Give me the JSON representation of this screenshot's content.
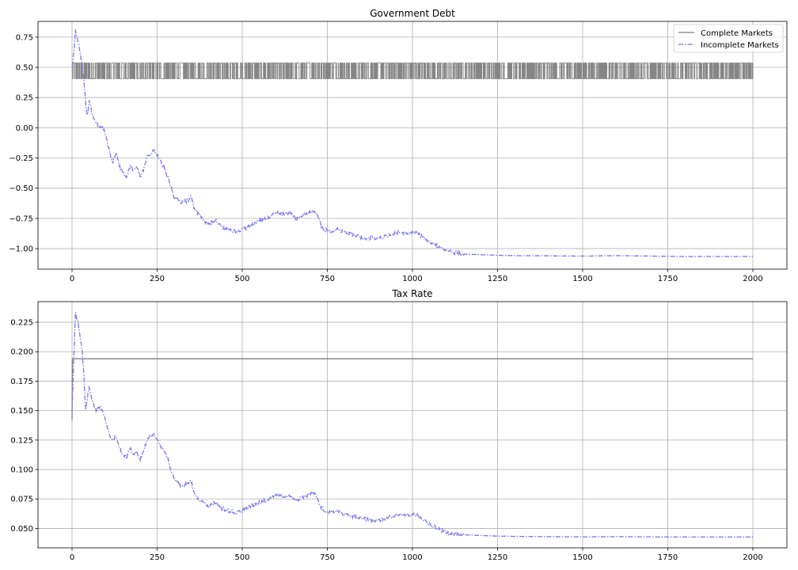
{
  "chart_data": [
    {
      "type": "line",
      "title": "Government Debt",
      "xlabel": "",
      "ylabel": "",
      "xlim": [
        -100,
        2100
      ],
      "ylim": [
        -1.17,
        0.88
      ],
      "xticks": [
        0,
        250,
        500,
        750,
        1000,
        1250,
        1500,
        1750,
        2000
      ],
      "xtick_labels": [
        "0",
        "250",
        "500",
        "750",
        "1000",
        "1250",
        "1500",
        "1750",
        "2000"
      ],
      "yticks": [
        -1.0,
        -0.75,
        -0.5,
        -0.25,
        0.0,
        0.25,
        0.5,
        0.75
      ],
      "ytick_labels": [
        "−1.00",
        "−0.75",
        "−0.50",
        "−0.25",
        "0.00",
        "0.25",
        "0.50",
        "0.75"
      ],
      "grid": true,
      "legend": {
        "placement": "top-right",
        "entries": [
          "Complete Markets",
          "Incomplete Markets"
        ]
      },
      "series": [
        {
          "name": "Complete Markets",
          "color": "#808080",
          "style": "solid",
          "pattern": "switching",
          "levels": [
            0.406,
            0.536
          ],
          "x_range": [
            0,
            2000
          ]
        },
        {
          "name": "Incomplete Markets",
          "color": "#7777ee",
          "style": "dashdot",
          "x": [
            0,
            5,
            10,
            15,
            20,
            25,
            30,
            35,
            40,
            45,
            50,
            60,
            70,
            80,
            90,
            100,
            110,
            120,
            130,
            140,
            150,
            160,
            170,
            180,
            190,
            200,
            210,
            220,
            230,
            240,
            250,
            260,
            270,
            280,
            290,
            300,
            320,
            340,
            350,
            360,
            380,
            400,
            420,
            440,
            460,
            480,
            500,
            520,
            540,
            560,
            580,
            600,
            620,
            640,
            660,
            680,
            700,
            710,
            720,
            730,
            740,
            760,
            780,
            800,
            820,
            840,
            860,
            880,
            900,
            920,
            940,
            960,
            980,
            1000,
            1020,
            1040,
            1060,
            1080,
            1100,
            1120,
            1150,
            1200,
            1250,
            1300,
            1400,
            1500,
            1600,
            1700,
            1800,
            1900,
            2000
          ],
          "y": [
            0.5,
            0.62,
            0.8,
            0.74,
            0.68,
            0.6,
            0.5,
            0.38,
            0.2,
            0.1,
            0.22,
            0.1,
            0.05,
            0.0,
            0.02,
            -0.08,
            -0.2,
            -0.28,
            -0.22,
            -0.32,
            -0.38,
            -0.4,
            -0.32,
            -0.36,
            -0.33,
            -0.4,
            -0.35,
            -0.25,
            -0.22,
            -0.18,
            -0.22,
            -0.28,
            -0.33,
            -0.4,
            -0.48,
            -0.58,
            -0.62,
            -0.6,
            -0.57,
            -0.68,
            -0.74,
            -0.8,
            -0.76,
            -0.82,
            -0.84,
            -0.86,
            -0.84,
            -0.82,
            -0.78,
            -0.76,
            -0.74,
            -0.7,
            -0.72,
            -0.7,
            -0.76,
            -0.72,
            -0.7,
            -0.68,
            -0.72,
            -0.8,
            -0.84,
            -0.86,
            -0.84,
            -0.86,
            -0.88,
            -0.9,
            -0.92,
            -0.91,
            -0.92,
            -0.9,
            -0.89,
            -0.86,
            -0.88,
            -0.86,
            -0.88,
            -0.93,
            -0.96,
            -0.99,
            -1.01,
            -1.03,
            -1.045,
            -1.05,
            -1.055,
            -1.058,
            -1.06,
            -1.062,
            -1.058,
            -1.062,
            -1.065,
            -1.065,
            -1.065
          ]
        }
      ]
    },
    {
      "type": "line",
      "title": "Tax Rate",
      "xlabel": "",
      "ylabel": "",
      "xlim": [
        -100,
        2100
      ],
      "ylim": [
        0.0335,
        0.2425
      ],
      "xticks": [
        0,
        250,
        500,
        750,
        1000,
        1250,
        1500,
        1750,
        2000
      ],
      "xtick_labels": [
        "0",
        "250",
        "500",
        "750",
        "1000",
        "1250",
        "1500",
        "1750",
        "2000"
      ],
      "yticks": [
        0.05,
        0.075,
        0.1,
        0.125,
        0.15,
        0.175,
        0.2,
        0.225
      ],
      "ytick_labels": [
        "0.050",
        "0.075",
        "0.100",
        "0.125",
        "0.150",
        "0.175",
        "0.200",
        "0.225"
      ],
      "grid": true,
      "series": [
        {
          "name": "Complete Markets",
          "color": "#808080",
          "style": "solid",
          "x": [
            0,
            1,
            2,
            2000
          ],
          "y": [
            0.142,
            0.194,
            0.194,
            0.194
          ]
        },
        {
          "name": "Incomplete Markets",
          "color": "#7777ee",
          "style": "dashdot",
          "x": [
            0,
            5,
            10,
            15,
            20,
            25,
            30,
            35,
            40,
            45,
            50,
            60,
            70,
            80,
            90,
            100,
            110,
            120,
            130,
            140,
            150,
            160,
            170,
            180,
            190,
            200,
            210,
            220,
            230,
            240,
            250,
            260,
            270,
            280,
            290,
            300,
            320,
            340,
            350,
            360,
            380,
            400,
            420,
            440,
            460,
            480,
            500,
            520,
            540,
            560,
            580,
            600,
            620,
            640,
            660,
            680,
            700,
            710,
            720,
            730,
            740,
            760,
            780,
            800,
            820,
            840,
            860,
            880,
            900,
            920,
            940,
            960,
            980,
            1000,
            1020,
            1040,
            1060,
            1080,
            1100,
            1120,
            1150,
            1200,
            1250,
            1300,
            1400,
            1500,
            1600,
            1700,
            1800,
            1900,
            2000
          ],
          "y": [
            0.15,
            0.195,
            0.232,
            0.228,
            0.22,
            0.21,
            0.2,
            0.18,
            0.15,
            0.16,
            0.17,
            0.158,
            0.15,
            0.153,
            0.15,
            0.14,
            0.13,
            0.125,
            0.128,
            0.118,
            0.112,
            0.11,
            0.118,
            0.112,
            0.115,
            0.108,
            0.115,
            0.125,
            0.128,
            0.13,
            0.125,
            0.12,
            0.115,
            0.11,
            0.1,
            0.092,
            0.086,
            0.088,
            0.09,
            0.078,
            0.073,
            0.068,
            0.072,
            0.067,
            0.065,
            0.063,
            0.065,
            0.068,
            0.071,
            0.073,
            0.075,
            0.079,
            0.077,
            0.078,
            0.074,
            0.077,
            0.079,
            0.08,
            0.076,
            0.068,
            0.065,
            0.064,
            0.065,
            0.062,
            0.061,
            0.059,
            0.058,
            0.057,
            0.057,
            0.058,
            0.06,
            0.062,
            0.061,
            0.062,
            0.06,
            0.056,
            0.052,
            0.049,
            0.047,
            0.045,
            0.0445,
            0.044,
            0.0435,
            0.0432,
            0.043,
            0.0428,
            0.043,
            0.0428,
            0.0427,
            0.0427,
            0.0427
          ]
        }
      ]
    }
  ]
}
